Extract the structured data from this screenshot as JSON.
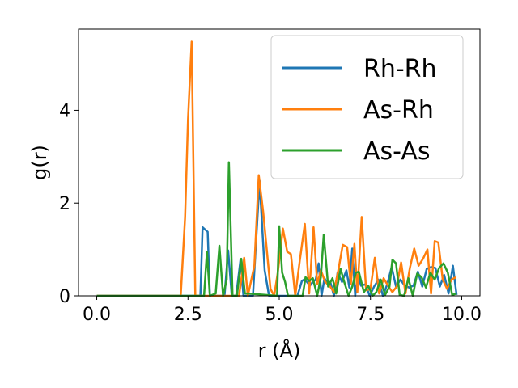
{
  "chart_data": {
    "type": "line",
    "xlabel": "r (Å)",
    "ylabel": "g(r)",
    "xlim": [
      -0.5,
      10.5
    ],
    "ylim": [
      0,
      5.75
    ],
    "xticks": [
      0.0,
      2.5,
      5.0,
      7.5,
      10.0
    ],
    "xtick_labels": [
      "0.0",
      "2.5",
      "5.0",
      "7.5",
      "10.0"
    ],
    "yticks": [
      0,
      2,
      4
    ],
    "ytick_labels": [
      "0",
      "2",
      "4"
    ],
    "grid": false,
    "legend_position": "top-right",
    "series": [
      {
        "name": "Rh-Rh",
        "color": "#1f77b4",
        "x": [
          0.0,
          2.84,
          2.9,
          2.94,
          3.04,
          3.1,
          3.5,
          3.6,
          3.7,
          3.82,
          3.94,
          4.02,
          4.16,
          4.28,
          4.46,
          4.6,
          4.72,
          5.5,
          5.62,
          5.68,
          5.76,
          5.84,
          5.92,
          6.0,
          6.08,
          6.16,
          6.24,
          6.32,
          6.4,
          6.5,
          6.6,
          6.72,
          6.84,
          6.92,
          7.0,
          7.08,
          7.16,
          7.24,
          7.36,
          7.48,
          7.6,
          7.72,
          7.84,
          7.96,
          8.08,
          8.2,
          8.32,
          8.44,
          8.56,
          8.68,
          8.8,
          8.92,
          9.04,
          9.16,
          9.28,
          9.4,
          9.52,
          9.64,
          9.76,
          9.86
        ],
        "values": [
          0,
          0,
          1.48,
          1.45,
          1.38,
          0,
          0,
          0.98,
          0,
          0,
          0.78,
          0,
          0,
          0,
          2.48,
          0.55,
          0,
          0,
          0.32,
          0.35,
          0.3,
          0.22,
          0.3,
          0.35,
          0.7,
          0,
          0.38,
          0.25,
          0.3,
          0,
          0.5,
          0.3,
          0.55,
          0.18,
          1.02,
          0,
          0.45,
          0.22,
          0.25,
          0,
          0.2,
          0.35,
          0,
          0.25,
          0.62,
          0.2,
          0.35,
          0.22,
          0.18,
          0.22,
          0.52,
          0.2,
          0.58,
          0.62,
          0.6,
          0.2,
          0.45,
          0.05,
          0.65,
          0.02
        ]
      },
      {
        "name": "As-Rh",
        "color": "#ff7f0e",
        "x": [
          0.0,
          2.3,
          2.42,
          2.5,
          2.6,
          2.7,
          3.9,
          4.04,
          4.14,
          4.32,
          4.44,
          4.56,
          4.76,
          4.86,
          4.96,
          5.1,
          5.22,
          5.32,
          5.44,
          5.56,
          5.7,
          5.82,
          5.94,
          6.04,
          6.14,
          6.26,
          6.38,
          6.5,
          6.62,
          6.74,
          6.86,
          6.96,
          7.06,
          7.14,
          7.26,
          7.38,
          7.5,
          7.62,
          7.74,
          7.86,
          7.98,
          8.1,
          8.22,
          8.34,
          8.46,
          8.58,
          8.7,
          8.82,
          8.94,
          9.06,
          9.16,
          9.26,
          9.36,
          9.48,
          9.6,
          9.72,
          9.84
        ],
        "values": [
          0,
          0,
          1.7,
          3.8,
          5.48,
          0,
          0,
          0.82,
          0,
          0.65,
          2.6,
          1.8,
          0.15,
          0,
          0.5,
          1.45,
          0.95,
          0.9,
          0,
          0.75,
          1.55,
          0.05,
          1.48,
          0.25,
          0.55,
          0.3,
          0.22,
          0.08,
          0.55,
          1.1,
          1.05,
          0.25,
          1.12,
          0.08,
          1.7,
          0.12,
          0.15,
          0.82,
          0.05,
          0.38,
          0.22,
          0.08,
          0.2,
          0.72,
          0.05,
          0.6,
          1.02,
          0.65,
          0.8,
          1.0,
          0.05,
          1.18,
          1.15,
          0.35,
          0.15,
          0.35,
          0.4
        ]
      },
      {
        "name": "As-As",
        "color": "#2ca02c",
        "x": [
          0.0,
          2.94,
          3.02,
          3.1,
          3.26,
          3.36,
          3.46,
          3.56,
          3.62,
          3.72,
          3.84,
          3.96,
          4.06,
          4.16,
          4.94,
          5.0,
          5.08,
          5.16,
          5.24,
          5.64,
          5.72,
          5.82,
          5.92,
          6.04,
          6.14,
          6.22,
          6.34,
          6.46,
          6.56,
          6.68,
          6.78,
          6.9,
          7.0,
          7.1,
          7.18,
          7.32,
          7.44,
          7.56,
          7.66,
          7.78,
          7.9,
          8.02,
          8.1,
          8.2,
          8.3,
          8.42,
          8.54,
          8.66,
          8.78,
          8.9,
          9.02,
          9.14,
          9.26,
          9.38,
          9.5,
          9.62,
          9.74,
          9.86
        ],
        "values": [
          0,
          0,
          0.95,
          0,
          0.05,
          1.08,
          0,
          0.35,
          2.88,
          0,
          0,
          0.8,
          0.05,
          0.05,
          0,
          1.5,
          0.5,
          0.3,
          0,
          0,
          0.4,
          0.32,
          0.38,
          0,
          0.4,
          1.32,
          0.2,
          0.38,
          0.05,
          0.58,
          0.3,
          0,
          0.2,
          0.5,
          0.52,
          0.08,
          0.22,
          0,
          0.08,
          0.35,
          0.02,
          0.2,
          0.78,
          0.7,
          0.02,
          0,
          0.38,
          0,
          0.48,
          0.4,
          0.18,
          0.5,
          0.35,
          0.6,
          0.7,
          0.5,
          0.02,
          0.05
        ]
      }
    ]
  }
}
